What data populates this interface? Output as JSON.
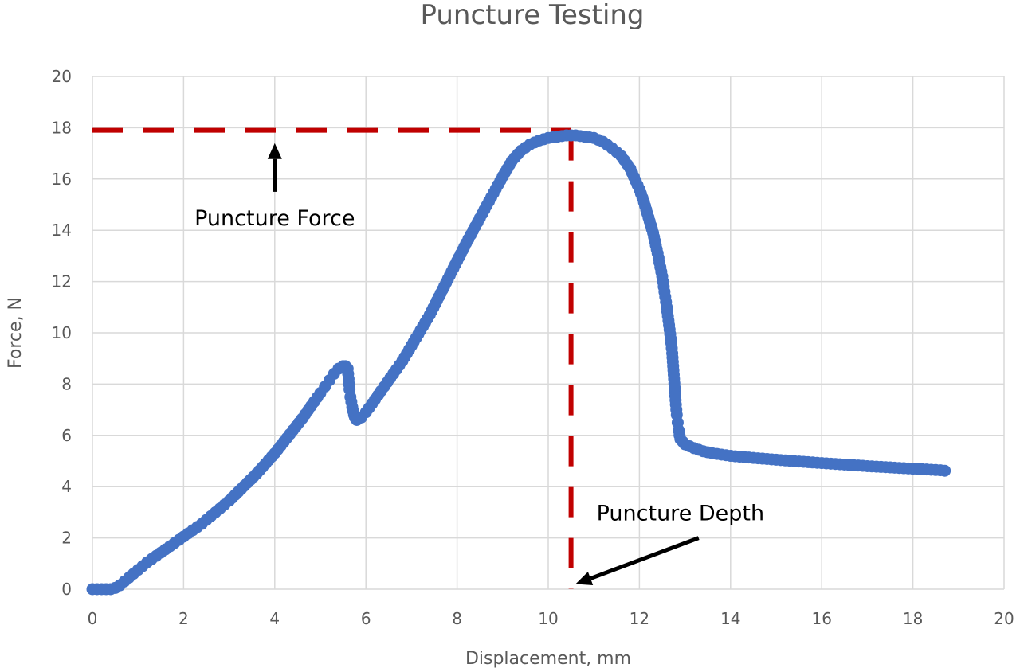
{
  "chart_data": {
    "type": "scatter",
    "title": "Puncture Testing",
    "xlabel": "Displacement, mm",
    "ylabel": "Force, N",
    "xlim": [
      0,
      20
    ],
    "ylim": [
      0,
      20
    ],
    "x_ticks": [
      0,
      2,
      4,
      6,
      8,
      10,
      12,
      14,
      16,
      18,
      20
    ],
    "y_ticks": [
      0,
      2,
      4,
      6,
      8,
      10,
      12,
      14,
      16,
      18,
      20
    ],
    "grid": true,
    "legend": "none",
    "series_color": "#4472C4",
    "reference_color": "#C00000",
    "series": [
      {
        "x": [
          0,
          0.1,
          0.2,
          0.3,
          0.4,
          0.5,
          0.6,
          0.7,
          0.8,
          0.9,
          1.0,
          1.1,
          1.2,
          1.4,
          1.6,
          1.8,
          2.0,
          2.2,
          2.4,
          2.6,
          2.8,
          3.0,
          3.2,
          3.4,
          3.6,
          3.8,
          4.0,
          4.2,
          4.4,
          4.6,
          4.8,
          5.0,
          5.1,
          5.2,
          5.3,
          5.4,
          5.5,
          5.55,
          5.6,
          5.62,
          5.64,
          5.66,
          5.68,
          5.7,
          5.72,
          5.74,
          5.76,
          5.78,
          5.8,
          5.9,
          6.0,
          6.2,
          6.4,
          6.6,
          6.8,
          7.0,
          7.2,
          7.4,
          7.6,
          7.8,
          8.0,
          8.2,
          8.4,
          8.6,
          8.8,
          9.0,
          9.2,
          9.4,
          9.6,
          9.8,
          10.0,
          10.2,
          10.4,
          10.6,
          10.8,
          11.0,
          11.2,
          11.4,
          11.6,
          11.8,
          12.0,
          12.1,
          12.2,
          12.3,
          12.4,
          12.5,
          12.55,
          12.6,
          12.65,
          12.7,
          12.72,
          12.74,
          12.76,
          12.78,
          12.8,
          12.82,
          12.84,
          12.86,
          12.88,
          12.9,
          12.95,
          13.0,
          13.2,
          13.4,
          13.6,
          13.8,
          14.0,
          14.5,
          15.0,
          15.5,
          16.0,
          16.5,
          17.0,
          17.5,
          18.0,
          18.3,
          18.6,
          18.7
        ],
        "y": [
          0.0,
          0.0,
          0.0,
          0.0,
          0.0,
          0.05,
          0.15,
          0.3,
          0.45,
          0.6,
          0.75,
          0.9,
          1.05,
          1.3,
          1.55,
          1.8,
          2.05,
          2.3,
          2.55,
          2.85,
          3.15,
          3.45,
          3.8,
          4.15,
          4.5,
          4.9,
          5.3,
          5.75,
          6.2,
          6.65,
          7.15,
          7.65,
          7.9,
          8.15,
          8.4,
          8.6,
          8.7,
          8.7,
          8.6,
          8.2,
          7.8,
          7.5,
          7.3,
          7.1,
          6.95,
          6.8,
          6.7,
          6.65,
          6.6,
          6.7,
          6.9,
          7.4,
          7.9,
          8.4,
          8.9,
          9.5,
          10.1,
          10.7,
          11.4,
          12.1,
          12.8,
          13.5,
          14.15,
          14.8,
          15.45,
          16.1,
          16.7,
          17.1,
          17.35,
          17.5,
          17.6,
          17.65,
          17.7,
          17.7,
          17.65,
          17.6,
          17.45,
          17.2,
          16.9,
          16.4,
          15.6,
          15.1,
          14.5,
          13.9,
          13.1,
          12.2,
          11.6,
          11.0,
          10.3,
          9.6,
          9.2,
          8.7,
          8.2,
          7.7,
          7.2,
          6.8,
          6.5,
          6.2,
          6.0,
          5.85,
          5.75,
          5.65,
          5.5,
          5.38,
          5.3,
          5.25,
          5.2,
          5.12,
          5.05,
          4.98,
          4.92,
          4.86,
          4.8,
          4.75,
          4.7,
          4.67,
          4.64,
          4.62
        ]
      }
    ],
    "reference_lines": [
      {
        "orientation": "horizontal",
        "y": 17.9,
        "x_from": 0,
        "x_to": 10.5,
        "style": "dashed"
      },
      {
        "orientation": "vertical",
        "x": 10.5,
        "y_from": 0,
        "y_to": 17.9,
        "style": "dashed"
      }
    ],
    "annotations": [
      {
        "text": "Puncture Force",
        "anchor_x": 4.0,
        "anchor_y": 14.5,
        "arrow_from": [
          4.0,
          15.5
        ],
        "arrow_to": [
          4.0,
          17.4
        ]
      },
      {
        "text": "Puncture Depth",
        "anchor_x": 12.9,
        "anchor_y": 3.0,
        "arrow_from": [
          13.3,
          2.0
        ],
        "arrow_to": [
          10.6,
          0.2
        ]
      }
    ]
  }
}
